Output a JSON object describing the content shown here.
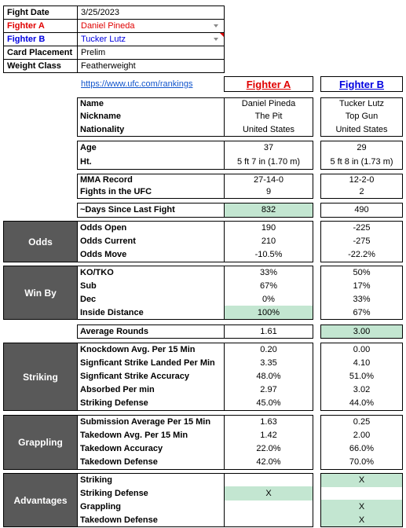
{
  "info": [
    [
      "Fight Date",
      "3/25/2023"
    ],
    [
      "Fighter A",
      "Daniel Pineda"
    ],
    [
      "Fighter B",
      "Tucker Lutz"
    ],
    [
      "Card Placement",
      "Prelim"
    ],
    [
      "Weight Class",
      "Featherweight"
    ]
  ],
  "link": "https://www.ufc.com/rankings",
  "headers": [
    "Fighter A",
    "Fighter B"
  ],
  "sections": [
    {
      "rows": [
        [
          "Name",
          "Daniel Pineda",
          "Tucker Lutz"
        ],
        [
          "Nickname",
          "The Pit",
          "Top Gun"
        ],
        [
          "Nationality",
          "United States",
          "United States"
        ]
      ]
    },
    {
      "rows": [
        [
          "Age",
          "37",
          "29"
        ],
        [
          "Ht.",
          "5 ft 7 in (1.70 m)",
          "5 ft 8 in (1.73 m)"
        ]
      ]
    },
    {
      "rows": [
        [
          "MMA Record",
          "27-14-0",
          "12-2-0"
        ],
        [
          "Fights in the UFC",
          "9",
          "2"
        ]
      ]
    },
    {
      "rows": [
        [
          "~Days Since Last Fight",
          "832",
          "490"
        ]
      ]
    },
    {
      "label": "Odds",
      "rows": [
        [
          "Odds Open",
          "190",
          "-225"
        ],
        [
          "Odds Current",
          "210",
          "-275"
        ],
        [
          "Odds Move",
          "-10.5%",
          "-22.2%"
        ]
      ]
    },
    {
      "label": "Win By",
      "rows": [
        [
          "KO/TKO",
          "33%",
          "50%"
        ],
        [
          "Sub",
          "67%",
          "17%"
        ],
        [
          "Dec",
          "0%",
          "33%"
        ],
        [
          "Inside Distance",
          "100%",
          "67%"
        ]
      ]
    },
    {
      "rows": [
        [
          "Average Rounds",
          "1.61",
          "3.00"
        ]
      ]
    },
    {
      "label": "Striking",
      "rows": [
        [
          "Knockdown Avg. Per 15 Min",
          "0.20",
          "0.00"
        ],
        [
          "Signficant Strike Landed Per Min",
          "3.35",
          "4.10"
        ],
        [
          "Signficant Strike Accuracy",
          "48.0%",
          "51.0%"
        ],
        [
          "Absorbed Per min",
          "2.97",
          "3.02"
        ],
        [
          "Striking Defense",
          "45.0%",
          "44.0%"
        ]
      ]
    },
    {
      "label": "Grappling",
      "rows": [
        [
          "Submission Average  Per 15 Min",
          "1.63",
          "0.25"
        ],
        [
          "Takedown Avg. Per 15 Min",
          "1.42",
          "2.00"
        ],
        [
          "Takedown Accuracy",
          "22.0%",
          "66.0%"
        ],
        [
          "Takedown Defense",
          "42.0%",
          "70.0%"
        ]
      ]
    },
    {
      "label": "Advantages",
      "rows": [
        [
          "Striking",
          null,
          "X"
        ],
        [
          "Striking Defense",
          "X",
          null
        ],
        [
          "Grappling",
          null,
          "X"
        ],
        [
          "Takedown Defense",
          null,
          "X"
        ]
      ]
    }
  ]
}
